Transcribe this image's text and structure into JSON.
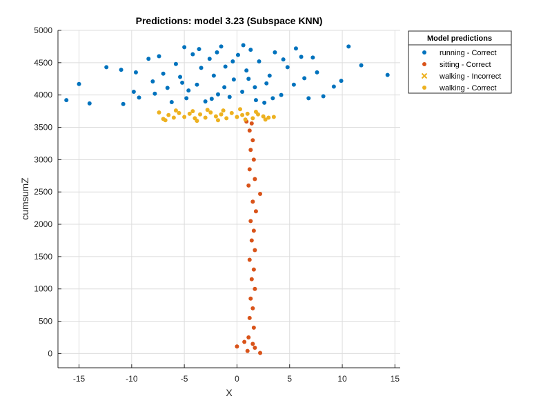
{
  "chart_data": {
    "type": "scatter",
    "title": "Predictions: model 3.23 (Subspace KNN)",
    "xlabel": "X",
    "ylabel": "cumsumZ",
    "xlim": [
      -17,
      15.5
    ],
    "ylim": [
      -220,
      5000
    ],
    "xticks": [
      -15,
      -10,
      -5,
      0,
      5,
      10,
      15
    ],
    "yticks": [
      0,
      500,
      1000,
      1500,
      2000,
      2500,
      3000,
      3500,
      4000,
      4500,
      5000
    ],
    "grid": true,
    "legend": {
      "title": "Model predictions",
      "placement": "outside-top-right"
    },
    "colors": {
      "running": "#0072BD",
      "sitting": "#D95319",
      "walking": "#EDB120"
    },
    "series": [
      {
        "name": "running - Correct",
        "marker": "dot",
        "color": "#0072BD",
        "points": [
          [
            -16.2,
            3920
          ],
          [
            -15,
            4170
          ],
          [
            -14,
            3870
          ],
          [
            -12.4,
            4430
          ],
          [
            -11,
            4390
          ],
          [
            -10.8,
            3860
          ],
          [
            -9.8,
            4050
          ],
          [
            -9.3,
            3960
          ],
          [
            -8.4,
            4560
          ],
          [
            -7.8,
            4020
          ],
          [
            -7,
            4330
          ],
          [
            -6.2,
            3890
          ],
          [
            -5.8,
            4480
          ],
          [
            -5.4,
            4280
          ],
          [
            -5,
            4740
          ],
          [
            -4.6,
            4070
          ],
          [
            -4.2,
            4630
          ],
          [
            -3.8,
            4160
          ],
          [
            -3.4,
            4420
          ],
          [
            -3,
            3900
          ],
          [
            -2.6,
            4560
          ],
          [
            -2.2,
            4300
          ],
          [
            -1.8,
            4010
          ],
          [
            -1.5,
            4750
          ],
          [
            -1.1,
            4440
          ],
          [
            -0.7,
            3970
          ],
          [
            -0.3,
            4240
          ],
          [
            0.1,
            4620
          ],
          [
            0.5,
            4050
          ],
          [
            0.9,
            4380
          ],
          [
            1.3,
            4700
          ],
          [
            1.7,
            4120
          ],
          [
            2.1,
            4520
          ],
          [
            2.6,
            3880
          ],
          [
            3.1,
            4300
          ],
          [
            3.6,
            4660
          ],
          [
            4.2,
            4000
          ],
          [
            4.8,
            4430
          ],
          [
            5.4,
            4160
          ],
          [
            6.1,
            4590
          ],
          [
            6.8,
            3950
          ],
          [
            7.6,
            4350
          ],
          [
            8.2,
            3980
          ],
          [
            9.2,
            4130
          ],
          [
            9.9,
            4220
          ],
          [
            10.6,
            4750
          ],
          [
            11.8,
            4460
          ],
          [
            14.3,
            4310
          ],
          [
            -6.6,
            4110
          ],
          [
            -4.8,
            3950
          ],
          [
            -3.6,
            4710
          ],
          [
            -2.4,
            3940
          ],
          [
            -1.2,
            4120
          ],
          [
            -0.4,
            4520
          ],
          [
            0.6,
            4770
          ],
          [
            1.8,
            3920
          ],
          [
            2.8,
            4180
          ],
          [
            4.4,
            4550
          ],
          [
            5.6,
            4720
          ],
          [
            7.2,
            4580
          ],
          [
            -9.6,
            4350
          ],
          [
            -8,
            4210
          ],
          [
            -7.4,
            4600
          ],
          [
            -5.2,
            4190
          ],
          [
            -1.9,
            4660
          ],
          [
            1.1,
            4250
          ],
          [
            3.4,
            3950
          ],
          [
            6.4,
            4260
          ]
        ]
      },
      {
        "name": "sitting - Correct",
        "marker": "dot",
        "color": "#D95319",
        "points": [
          [
            0.9,
            3590
          ],
          [
            1.4,
            3560
          ],
          [
            1.2,
            3450
          ],
          [
            1.5,
            3300
          ],
          [
            1.3,
            3150
          ],
          [
            1.6,
            3000
          ],
          [
            1.2,
            2850
          ],
          [
            1.7,
            2700
          ],
          [
            1.1,
            2600
          ],
          [
            2.2,
            2470
          ],
          [
            1.5,
            2350
          ],
          [
            1.8,
            2200
          ],
          [
            1.3,
            2050
          ],
          [
            1.6,
            1900
          ],
          [
            1.4,
            1750
          ],
          [
            1.7,
            1600
          ],
          [
            1.2,
            1450
          ],
          [
            1.6,
            1300
          ],
          [
            1.4,
            1150
          ],
          [
            1.7,
            1000
          ],
          [
            1.3,
            850
          ],
          [
            1.5,
            700
          ],
          [
            1.2,
            550
          ],
          [
            1.6,
            400
          ],
          [
            1.1,
            250
          ],
          [
            0.7,
            180
          ],
          [
            1.5,
            150
          ],
          [
            0,
            110
          ],
          [
            2.2,
            10
          ],
          [
            1,
            40
          ],
          [
            1.7,
            90
          ]
        ]
      },
      {
        "name": "walking - Incorrect",
        "marker": "x",
        "color": "#EDB120",
        "points": []
      },
      {
        "name": "walking - Correct",
        "marker": "dot",
        "color": "#EDB120",
        "points": [
          [
            -7.4,
            3730
          ],
          [
            -7,
            3630
          ],
          [
            -6.5,
            3690
          ],
          [
            -6,
            3650
          ],
          [
            -5.5,
            3720
          ],
          [
            -5,
            3660
          ],
          [
            -4.5,
            3710
          ],
          [
            -4,
            3640
          ],
          [
            -3.5,
            3700
          ],
          [
            -3,
            3650
          ],
          [
            -2.5,
            3730
          ],
          [
            -2,
            3670
          ],
          [
            -1.5,
            3700
          ],
          [
            -1,
            3640
          ],
          [
            -0.5,
            3720
          ],
          [
            0,
            3660
          ],
          [
            0.5,
            3690
          ],
          [
            1,
            3710
          ],
          [
            1.5,
            3640
          ],
          [
            2,
            3700
          ],
          [
            2.5,
            3670
          ],
          [
            3,
            3650
          ],
          [
            3.5,
            3660
          ],
          [
            -5.8,
            3760
          ],
          [
            -4.2,
            3750
          ],
          [
            -2.8,
            3770
          ],
          [
            -1.3,
            3760
          ],
          [
            0.3,
            3780
          ],
          [
            1.8,
            3740
          ],
          [
            -3.8,
            3600
          ],
          [
            -1.8,
            3610
          ],
          [
            0.8,
            3620
          ],
          [
            2.7,
            3620
          ],
          [
            -6.8,
            3610
          ]
        ]
      }
    ]
  }
}
